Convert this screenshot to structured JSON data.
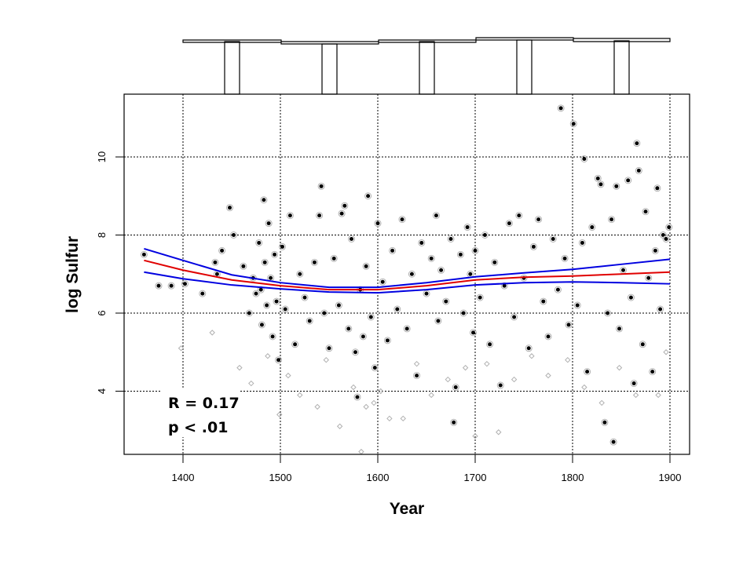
{
  "chart_data": {
    "type": "scatter",
    "title": "",
    "xlabel": "Year",
    "ylabel": "log Sulfur",
    "xlim": [
      1340,
      1920
    ],
    "ylim": [
      2.4,
      11.6
    ],
    "xticks": [
      1400,
      1500,
      1600,
      1700,
      1800,
      1900
    ],
    "yticks": [
      4,
      6,
      8,
      10
    ],
    "grid": true,
    "annotations": [
      "R = 0.17",
      "p < .01"
    ],
    "colors": {
      "points": "#000000",
      "points_gray": "#b0b0b0",
      "fit": "#e00000",
      "ci": "#0000e0"
    },
    "fit_line": {
      "x": [
        1360,
        1400,
        1450,
        1500,
        1550,
        1600,
        1650,
        1700,
        1750,
        1800,
        1850,
        1900
      ],
      "y": [
        7.35,
        7.1,
        6.85,
        6.7,
        6.6,
        6.6,
        6.7,
        6.85,
        6.92,
        6.95,
        7.0,
        7.05
      ]
    },
    "ci_upper": {
      "x": [
        1360,
        1400,
        1450,
        1500,
        1550,
        1600,
        1650,
        1700,
        1750,
        1800,
        1850,
        1900
      ],
      "y": [
        7.65,
        7.35,
        6.98,
        6.78,
        6.66,
        6.66,
        6.78,
        6.93,
        7.03,
        7.12,
        7.25,
        7.38
      ]
    },
    "ci_lower": {
      "x": [
        1360,
        1400,
        1450,
        1500,
        1550,
        1600,
        1650,
        1700,
        1750,
        1800,
        1850,
        1900
      ],
      "y": [
        7.05,
        6.88,
        6.72,
        6.62,
        6.54,
        6.52,
        6.6,
        6.72,
        6.78,
        6.8,
        6.78,
        6.75
      ]
    },
    "points": [
      [
        1360,
        7.5
      ],
      [
        1375,
        6.7
      ],
      [
        1388,
        6.7
      ],
      [
        1402,
        6.75
      ],
      [
        1420,
        6.5
      ],
      [
        1433,
        7.3
      ],
      [
        1435,
        7.0
      ],
      [
        1440,
        7.6
      ],
      [
        1448,
        8.7
      ],
      [
        1452,
        8.0
      ],
      [
        1462,
        7.2
      ],
      [
        1468,
        6.0
      ],
      [
        1472,
        6.9
      ],
      [
        1475,
        6.5
      ],
      [
        1478,
        7.8
      ],
      [
        1480,
        6.6
      ],
      [
        1481,
        5.7
      ],
      [
        1483,
        8.9
      ],
      [
        1484,
        7.3
      ],
      [
        1486,
        6.2
      ],
      [
        1488,
        8.3
      ],
      [
        1490,
        6.9
      ],
      [
        1492,
        5.4
      ],
      [
        1494,
        7.5
      ],
      [
        1496,
        6.3
      ],
      [
        1498,
        4.8
      ],
      [
        1502,
        7.7
      ],
      [
        1505,
        6.1
      ],
      [
        1510,
        8.5
      ],
      [
        1515,
        5.2
      ],
      [
        1520,
        7.0
      ],
      [
        1525,
        6.4
      ],
      [
        1530,
        5.8
      ],
      [
        1535,
        7.3
      ],
      [
        1540,
        8.5
      ],
      [
        1542,
        9.25
      ],
      [
        1545,
        6.0
      ],
      [
        1550,
        5.1
      ],
      [
        1555,
        7.4
      ],
      [
        1560,
        6.2
      ],
      [
        1563,
        8.55
      ],
      [
        1566,
        8.75
      ],
      [
        1570,
        5.6
      ],
      [
        1573,
        7.9
      ],
      [
        1577,
        5.0
      ],
      [
        1579,
        3.85
      ],
      [
        1582,
        6.6
      ],
      [
        1585,
        5.4
      ],
      [
        1588,
        7.2
      ],
      [
        1590,
        9.0
      ],
      [
        1593,
        5.9
      ],
      [
        1597,
        4.6
      ],
      [
        1600,
        8.3
      ],
      [
        1605,
        6.8
      ],
      [
        1610,
        5.3
      ],
      [
        1615,
        7.6
      ],
      [
        1620,
        6.1
      ],
      [
        1625,
        8.4
      ],
      [
        1630,
        5.6
      ],
      [
        1635,
        7.0
      ],
      [
        1640,
        4.4
      ],
      [
        1645,
        7.8
      ],
      [
        1650,
        6.5
      ],
      [
        1655,
        7.4
      ],
      [
        1660,
        8.5
      ],
      [
        1662,
        5.8
      ],
      [
        1665,
        7.1
      ],
      [
        1670,
        6.3
      ],
      [
        1675,
        7.9
      ],
      [
        1678,
        3.2
      ],
      [
        1680,
        4.1
      ],
      [
        1685,
        7.5
      ],
      [
        1688,
        6.0
      ],
      [
        1692,
        8.2
      ],
      [
        1695,
        7.0
      ],
      [
        1698,
        5.5
      ],
      [
        1700,
        7.6
      ],
      [
        1705,
        6.4
      ],
      [
        1710,
        8.0
      ],
      [
        1715,
        5.2
      ],
      [
        1720,
        7.3
      ],
      [
        1726,
        4.15
      ],
      [
        1730,
        6.7
      ],
      [
        1735,
        8.3
      ],
      [
        1740,
        5.9
      ],
      [
        1745,
        8.5
      ],
      [
        1750,
        6.9
      ],
      [
        1755,
        5.1
      ],
      [
        1760,
        7.7
      ],
      [
        1765,
        8.4
      ],
      [
        1770,
        6.3
      ],
      [
        1775,
        5.4
      ],
      [
        1780,
        7.9
      ],
      [
        1785,
        6.6
      ],
      [
        1788,
        11.25
      ],
      [
        1792,
        7.4
      ],
      [
        1796,
        5.7
      ],
      [
        1801,
        10.85
      ],
      [
        1805,
        6.2
      ],
      [
        1810,
        7.8
      ],
      [
        1812,
        9.95
      ],
      [
        1815,
        4.5
      ],
      [
        1820,
        8.2
      ],
      [
        1826,
        9.45
      ],
      [
        1829,
        9.3
      ],
      [
        1833,
        3.2
      ],
      [
        1836,
        6.0
      ],
      [
        1840,
        8.4
      ],
      [
        1842,
        2.7
      ],
      [
        1845,
        9.25
      ],
      [
        1848,
        5.6
      ],
      [
        1852,
        7.1
      ],
      [
        1857,
        9.4
      ],
      [
        1860,
        6.4
      ],
      [
        1863,
        4.2
      ],
      [
        1866,
        10.35
      ],
      [
        1868,
        9.65
      ],
      [
        1872,
        5.2
      ],
      [
        1875,
        8.6
      ],
      [
        1878,
        6.9
      ],
      [
        1882,
        4.5
      ],
      [
        1885,
        7.6
      ],
      [
        1887,
        9.2
      ],
      [
        1890,
        6.1
      ],
      [
        1893,
        8.0
      ],
      [
        1896,
        7.9
      ],
      [
        1899,
        8.2
      ]
    ],
    "points_gray": [
      [
        1398,
        5.1
      ],
      [
        1430,
        5.5
      ],
      [
        1458,
        4.6
      ],
      [
        1470,
        4.2
      ],
      [
        1487,
        4.9
      ],
      [
        1499,
        3.4
      ],
      [
        1508,
        4.4
      ],
      [
        1520,
        3.9
      ],
      [
        1538,
        3.6
      ],
      [
        1547,
        4.8
      ],
      [
        1561,
        3.1
      ],
      [
        1575,
        4.1
      ],
      [
        1583,
        2.45
      ],
      [
        1588,
        3.6
      ],
      [
        1596,
        3.7
      ],
      [
        1603,
        4.0
      ],
      [
        1612,
        3.3
      ],
      [
        1626,
        3.3
      ],
      [
        1640,
        4.7
      ],
      [
        1655,
        3.9
      ],
      [
        1672,
        4.3
      ],
      [
        1690,
        4.6
      ],
      [
        1700,
        2.85
      ],
      [
        1712,
        4.7
      ],
      [
        1724,
        2.95
      ],
      [
        1740,
        4.3
      ],
      [
        1758,
        4.9
      ],
      [
        1775,
        4.4
      ],
      [
        1795,
        4.8
      ],
      [
        1812,
        4.1
      ],
      [
        1830,
        3.7
      ],
      [
        1848,
        4.6
      ],
      [
        1865,
        3.9
      ],
      [
        1888,
        3.9
      ],
      [
        1896,
        5.0
      ]
    ]
  }
}
